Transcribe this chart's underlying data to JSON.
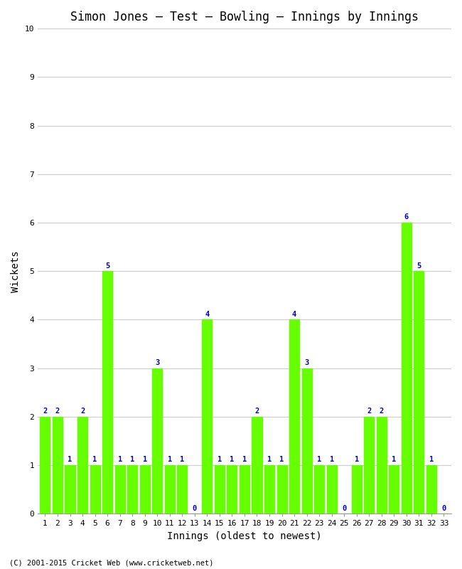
{
  "title": "Simon Jones – Test – Bowling – Innings by Innings",
  "xlabel": "Innings (oldest to newest)",
  "ylabel": "Wickets",
  "innings": [
    1,
    2,
    3,
    4,
    5,
    6,
    7,
    8,
    9,
    10,
    11,
    12,
    13,
    14,
    15,
    16,
    17,
    18,
    19,
    20,
    21,
    22,
    23,
    24,
    25,
    26,
    27,
    28,
    29,
    30,
    31,
    32,
    33
  ],
  "wickets": [
    2,
    2,
    1,
    2,
    1,
    5,
    1,
    1,
    1,
    3,
    1,
    1,
    0,
    4,
    1,
    1,
    1,
    2,
    1,
    1,
    4,
    3,
    1,
    1,
    0,
    1,
    2,
    2,
    1,
    6,
    5,
    1,
    0
  ],
  "bar_color": "#66ff00",
  "bar_edge_color": "#66ff00",
  "label_color": "#0000cc",
  "background_color": "#ffffff",
  "grid_color": "#cccccc",
  "ylim": [
    0,
    10
  ],
  "yticks": [
    0,
    1,
    2,
    3,
    4,
    5,
    6,
    7,
    8,
    9,
    10
  ],
  "title_fontsize": 12,
  "label_fontsize": 10,
  "tick_fontsize": 8,
  "annotation_fontsize": 7.5,
  "footer": "(C) 2001-2015 Cricket Web (www.cricketweb.net)"
}
